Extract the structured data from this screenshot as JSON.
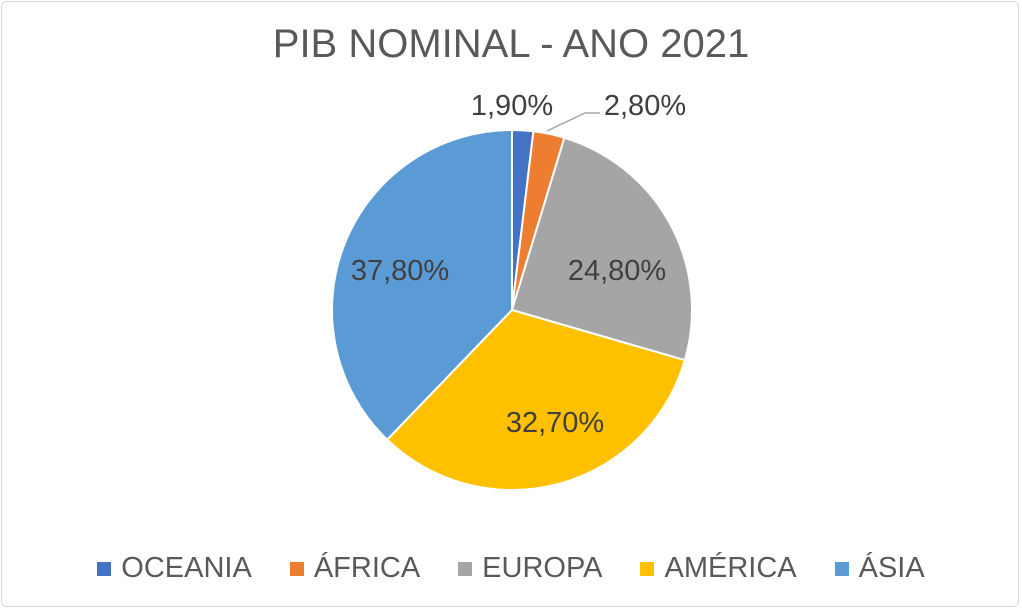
{
  "chart_data": {
    "type": "pie",
    "title": "PIB NOMINAL - ANO 2021",
    "categories": [
      "OCEANIA",
      "ÁFRICA",
      "EUROPA",
      "AMÉRICA",
      "ÁSIA"
    ],
    "values": [
      1.9,
      2.8,
      24.8,
      32.7,
      37.8
    ],
    "labels": [
      "1,90%",
      "2,80%",
      "24,80%",
      "32,70%",
      "37,80%"
    ],
    "colors": [
      "#4472C4",
      "#ED7D31",
      "#A5A5A5",
      "#FFC000",
      "#5B9BD5"
    ],
    "start": "top, clockwise",
    "legend": "bottom"
  }
}
